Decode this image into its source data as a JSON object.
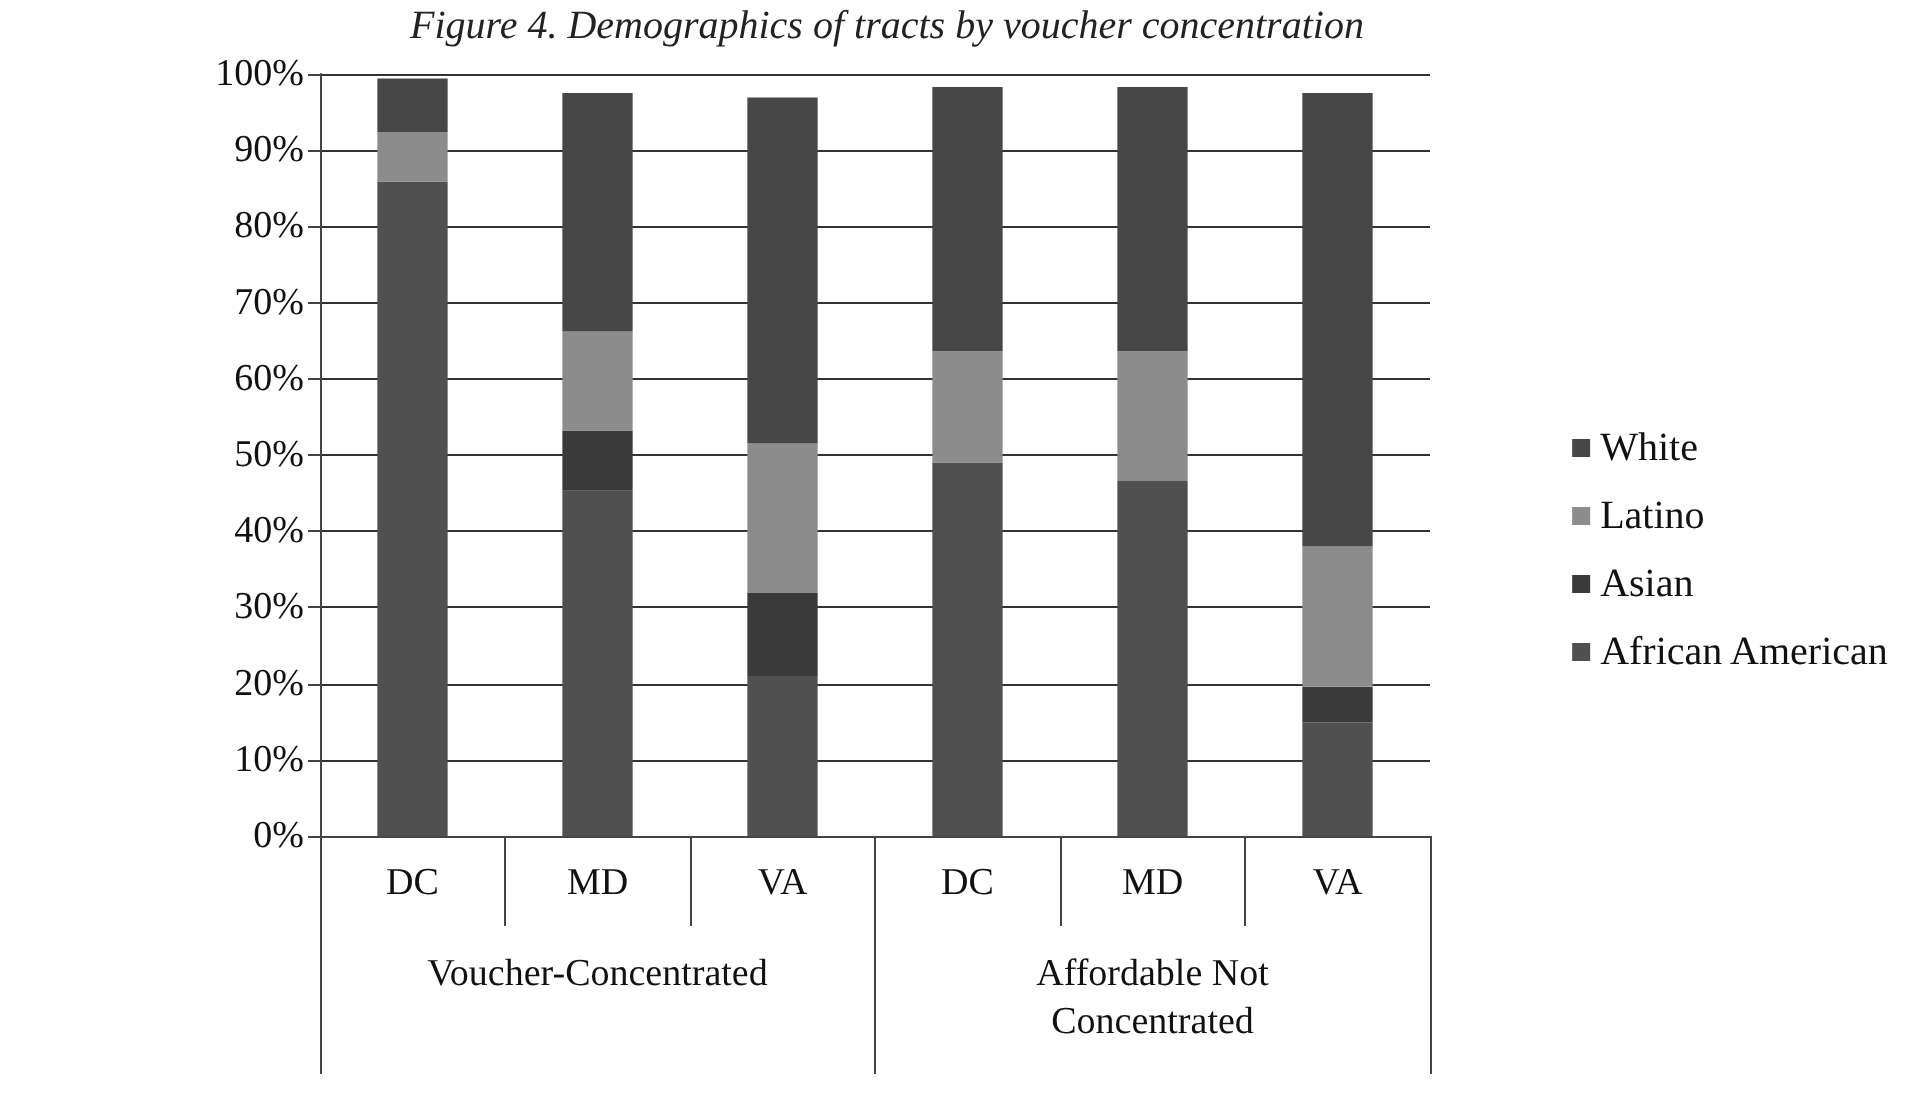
{
  "chart_data": {
    "type": "bar",
    "title": "Figure 4. Demographics of tracts by voucher concentration",
    "categories": [
      "DC",
      "MD",
      "VA",
      "DC",
      "MD",
      "VA"
    ],
    "annotations": [
      "Voucher-Concentrated",
      "Affordable Not Concentrated"
    ],
    "stacked": true,
    "series": [
      {
        "name": "African American",
        "color": "#505050",
        "values": [
          85.9,
          45.3,
          21,
          49,
          46.6,
          14.9
        ]
      },
      {
        "name": "Asian",
        "color": "#3a3a3a",
        "values": [
          0,
          7.9,
          10.9,
          0,
          0,
          4.7
        ]
      },
      {
        "name": "Latino",
        "color": "#8c8c8c",
        "values": [
          6.5,
          13,
          19.6,
          14.6,
          17,
          18.4
        ]
      },
      {
        "name": "White",
        "color": "#474747",
        "values": [
          7,
          31.3,
          45.4,
          34.7,
          34.7,
          59.5
        ]
      }
    ],
    "ylim": [
      0,
      100
    ],
    "yticks": [
      {
        "value": 0,
        "label": "0%"
      },
      {
        "value": 10,
        "label": "10%"
      },
      {
        "value": 20,
        "label": "20%"
      },
      {
        "value": 30,
        "label": "30%"
      },
      {
        "value": 40,
        "label": "40%"
      },
      {
        "value": 50,
        "label": "50%"
      },
      {
        "value": 60,
        "label": "60%"
      },
      {
        "value": 70,
        "label": "70%"
      },
      {
        "value": 80,
        "label": "80%"
      },
      {
        "value": 90,
        "label": "90%"
      },
      {
        "value": 100,
        "label": "100%"
      }
    ],
    "grid": "y",
    "legend": "right"
  }
}
